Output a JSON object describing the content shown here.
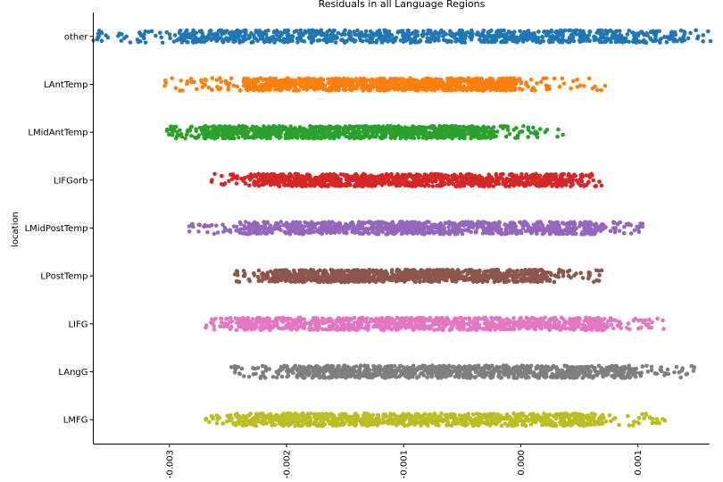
{
  "chart_data": {
    "type": "scatter",
    "title": "Residuals in all Language Regions",
    "xlabel": "",
    "ylabel": "location",
    "x_ticks": [
      -0.003,
      -0.002,
      -0.001,
      0.0,
      0.001
    ],
    "x_tick_labels": [
      "-0.003",
      "-0.002",
      "-0.001",
      "0.000",
      "0.001"
    ],
    "xlim": [
      -0.00365,
      0.00162
    ],
    "grid": false,
    "categories": [
      "other",
      "LAntTemp",
      "LMidAntTemp",
      "LIFGorb",
      "LMidPostTemp",
      "LPostTemp",
      "LIFG",
      "LAngG",
      "LMFG"
    ],
    "series": [
      {
        "category": "other",
        "color": "#1f77b4",
        "dense_range": [
          -0.0029,
          0.00115
        ],
        "min": -0.00365,
        "max": 0.00162
      },
      {
        "category": "LAntTemp",
        "color": "#ff7f0e",
        "dense_range": [
          -0.00235,
          -5e-05
        ],
        "min": -0.00304,
        "max": 0.00072
      },
      {
        "category": "LMidAntTemp",
        "color": "#2ca02c",
        "dense_range": [
          -0.0027,
          -0.00025
        ],
        "min": -0.00302,
        "max": 0.00036
      },
      {
        "category": "LIFGorb",
        "color": "#d62728",
        "dense_range": [
          -0.00222,
          0.00038
        ],
        "min": -0.00264,
        "max": 0.00069
      },
      {
        "category": "LMidPostTemp",
        "color": "#9467bd",
        "dense_range": [
          -0.00232,
          0.00062
        ],
        "min": -0.00283,
        "max": 0.00104
      },
      {
        "category": "LPostTemp",
        "color": "#8c564b",
        "dense_range": [
          -0.0021,
          0.0002
        ],
        "min": -0.00244,
        "max": 0.00069
      },
      {
        "category": "LIFG",
        "color": "#e377c2",
        "dense_range": [
          -0.00238,
          0.0007
        ],
        "min": -0.00269,
        "max": 0.00122
      },
      {
        "category": "LAngG",
        "color": "#7f7f7f",
        "dense_range": [
          -0.00196,
          0.00092
        ],
        "min": -0.00247,
        "max": 0.00148
      },
      {
        "category": "LMFG",
        "color": "#bcbd22",
        "dense_range": [
          -0.00233,
          0.00062
        ],
        "min": -0.00269,
        "max": 0.00123
      }
    ]
  }
}
